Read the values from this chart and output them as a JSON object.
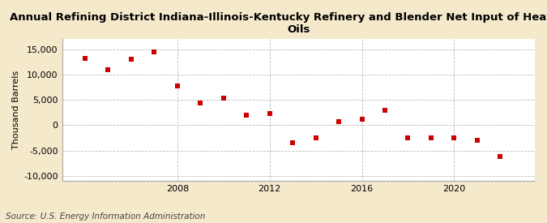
{
  "title_line1": "Annual Refining District Indiana-Illinois-Kentucky Refinery and Blender Net Input of Heavy Gas",
  "title_line2": "Oils",
  "ylabel": "Thousand Barrels",
  "source": "Source: U.S. Energy Information Administration",
  "years": [
    2004,
    2005,
    2006,
    2007,
    2008,
    2009,
    2010,
    2011,
    2012,
    2013,
    2014,
    2015,
    2016,
    2017,
    2018,
    2019,
    2020,
    2021,
    2022
  ],
  "values": [
    13200,
    11000,
    13000,
    14500,
    7800,
    4400,
    5300,
    2000,
    2300,
    -3500,
    -2500,
    700,
    1200,
    3000,
    -2500,
    -2500,
    -2500,
    -3000,
    -6200
  ],
  "marker_color": "#cc0000",
  "bg_color": "#f5e9cc",
  "plot_bg_color": "#ffffff",
  "grid_color": "#bbbbbb",
  "ylim": [
    -11000,
    17000
  ],
  "yticks": [
    -10000,
    -5000,
    0,
    5000,
    10000,
    15000
  ],
  "xticks": [
    2008,
    2012,
    2016,
    2020
  ],
  "xlim": [
    2003.0,
    2023.5
  ],
  "title_fontsize": 9.5,
  "ylabel_fontsize": 8,
  "tick_fontsize": 8,
  "source_fontsize": 7.5
}
